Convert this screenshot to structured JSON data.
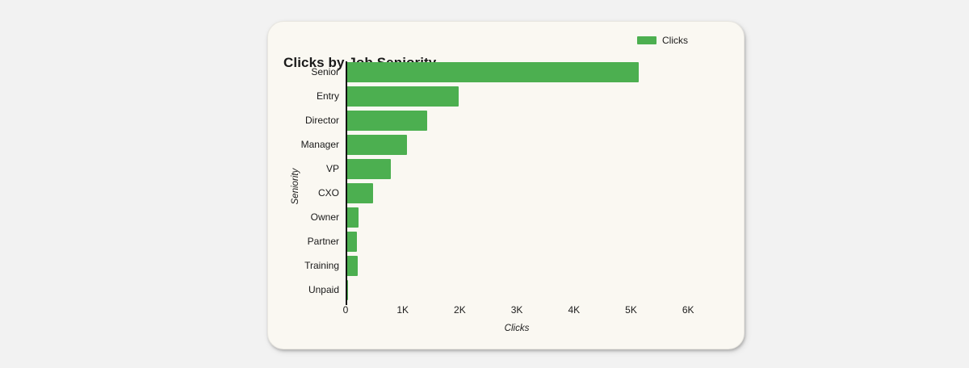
{
  "chart_data": {
    "type": "bar",
    "orientation": "horizontal",
    "title": "Clicks by Job Seniority",
    "xlabel": "Clicks",
    "ylabel": "Seniority",
    "categories": [
      "Senior",
      "Entry",
      "Director",
      "Manager",
      "VP",
      "CXO",
      "Owner",
      "Partner",
      "Training",
      "Unpaid"
    ],
    "values": [
      5100,
      1950,
      1400,
      1050,
      760,
      450,
      200,
      170,
      180,
      10
    ],
    "series_name": "Clicks",
    "legend_label": "Clicks",
    "legend_position": "top-right",
    "xlim": [
      0,
      6000
    ],
    "xticks": [
      "0",
      "1K",
      "2K",
      "3K",
      "4K",
      "5K",
      "6K"
    ],
    "xtick_values": [
      0,
      1000,
      2000,
      3000,
      4000,
      5000,
      6000
    ],
    "grid": false,
    "bar_color": "#4caf50"
  }
}
